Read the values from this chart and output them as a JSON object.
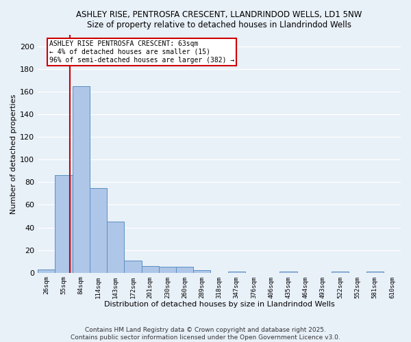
{
  "title_line1": "ASHLEY RISE, PENTROSFA CRESCENT, LLANDRINDOD WELLS, LD1 5NW",
  "title_line2": "Size of property relative to detached houses in Llandrindod Wells",
  "xlabel": "Distribution of detached houses by size in Llandrindod Wells",
  "ylabel": "Number of detached properties",
  "categories": [
    "26sqm",
    "55sqm",
    "84sqm",
    "114sqm",
    "143sqm",
    "172sqm",
    "201sqm",
    "230sqm",
    "260sqm",
    "289sqm",
    "318sqm",
    "347sqm",
    "376sqm",
    "406sqm",
    "435sqm",
    "464sqm",
    "493sqm",
    "522sqm",
    "552sqm",
    "581sqm",
    "610sqm"
  ],
  "values": [
    3,
    86,
    165,
    75,
    45,
    11,
    6,
    5,
    5,
    2,
    0,
    1,
    0,
    0,
    1,
    0,
    0,
    1,
    0,
    1,
    0
  ],
  "bar_color": "#aec6e8",
  "bar_edge_color": "#5a8fc0",
  "background_color": "#e8f0f8",
  "grid_color": "#ffffff",
  "red_line_x": 1.37,
  "annotation_title": "ASHLEY RISE PENTROSFA CRESCENT: 63sqm",
  "annotation_line2": "← 4% of detached houses are smaller (15)",
  "annotation_line3": "96% of semi-detached houses are larger (382) →",
  "annotation_box_color": "#ffffff",
  "annotation_border_color": "#cc0000",
  "red_line_color": "#cc0000",
  "ylim": [
    0,
    210
  ],
  "yticks": [
    0,
    20,
    40,
    60,
    80,
    100,
    120,
    140,
    160,
    180,
    200
  ],
  "footer1": "Contains HM Land Registry data © Crown copyright and database right 2025.",
  "footer2": "Contains public sector information licensed under the Open Government Licence v3.0."
}
